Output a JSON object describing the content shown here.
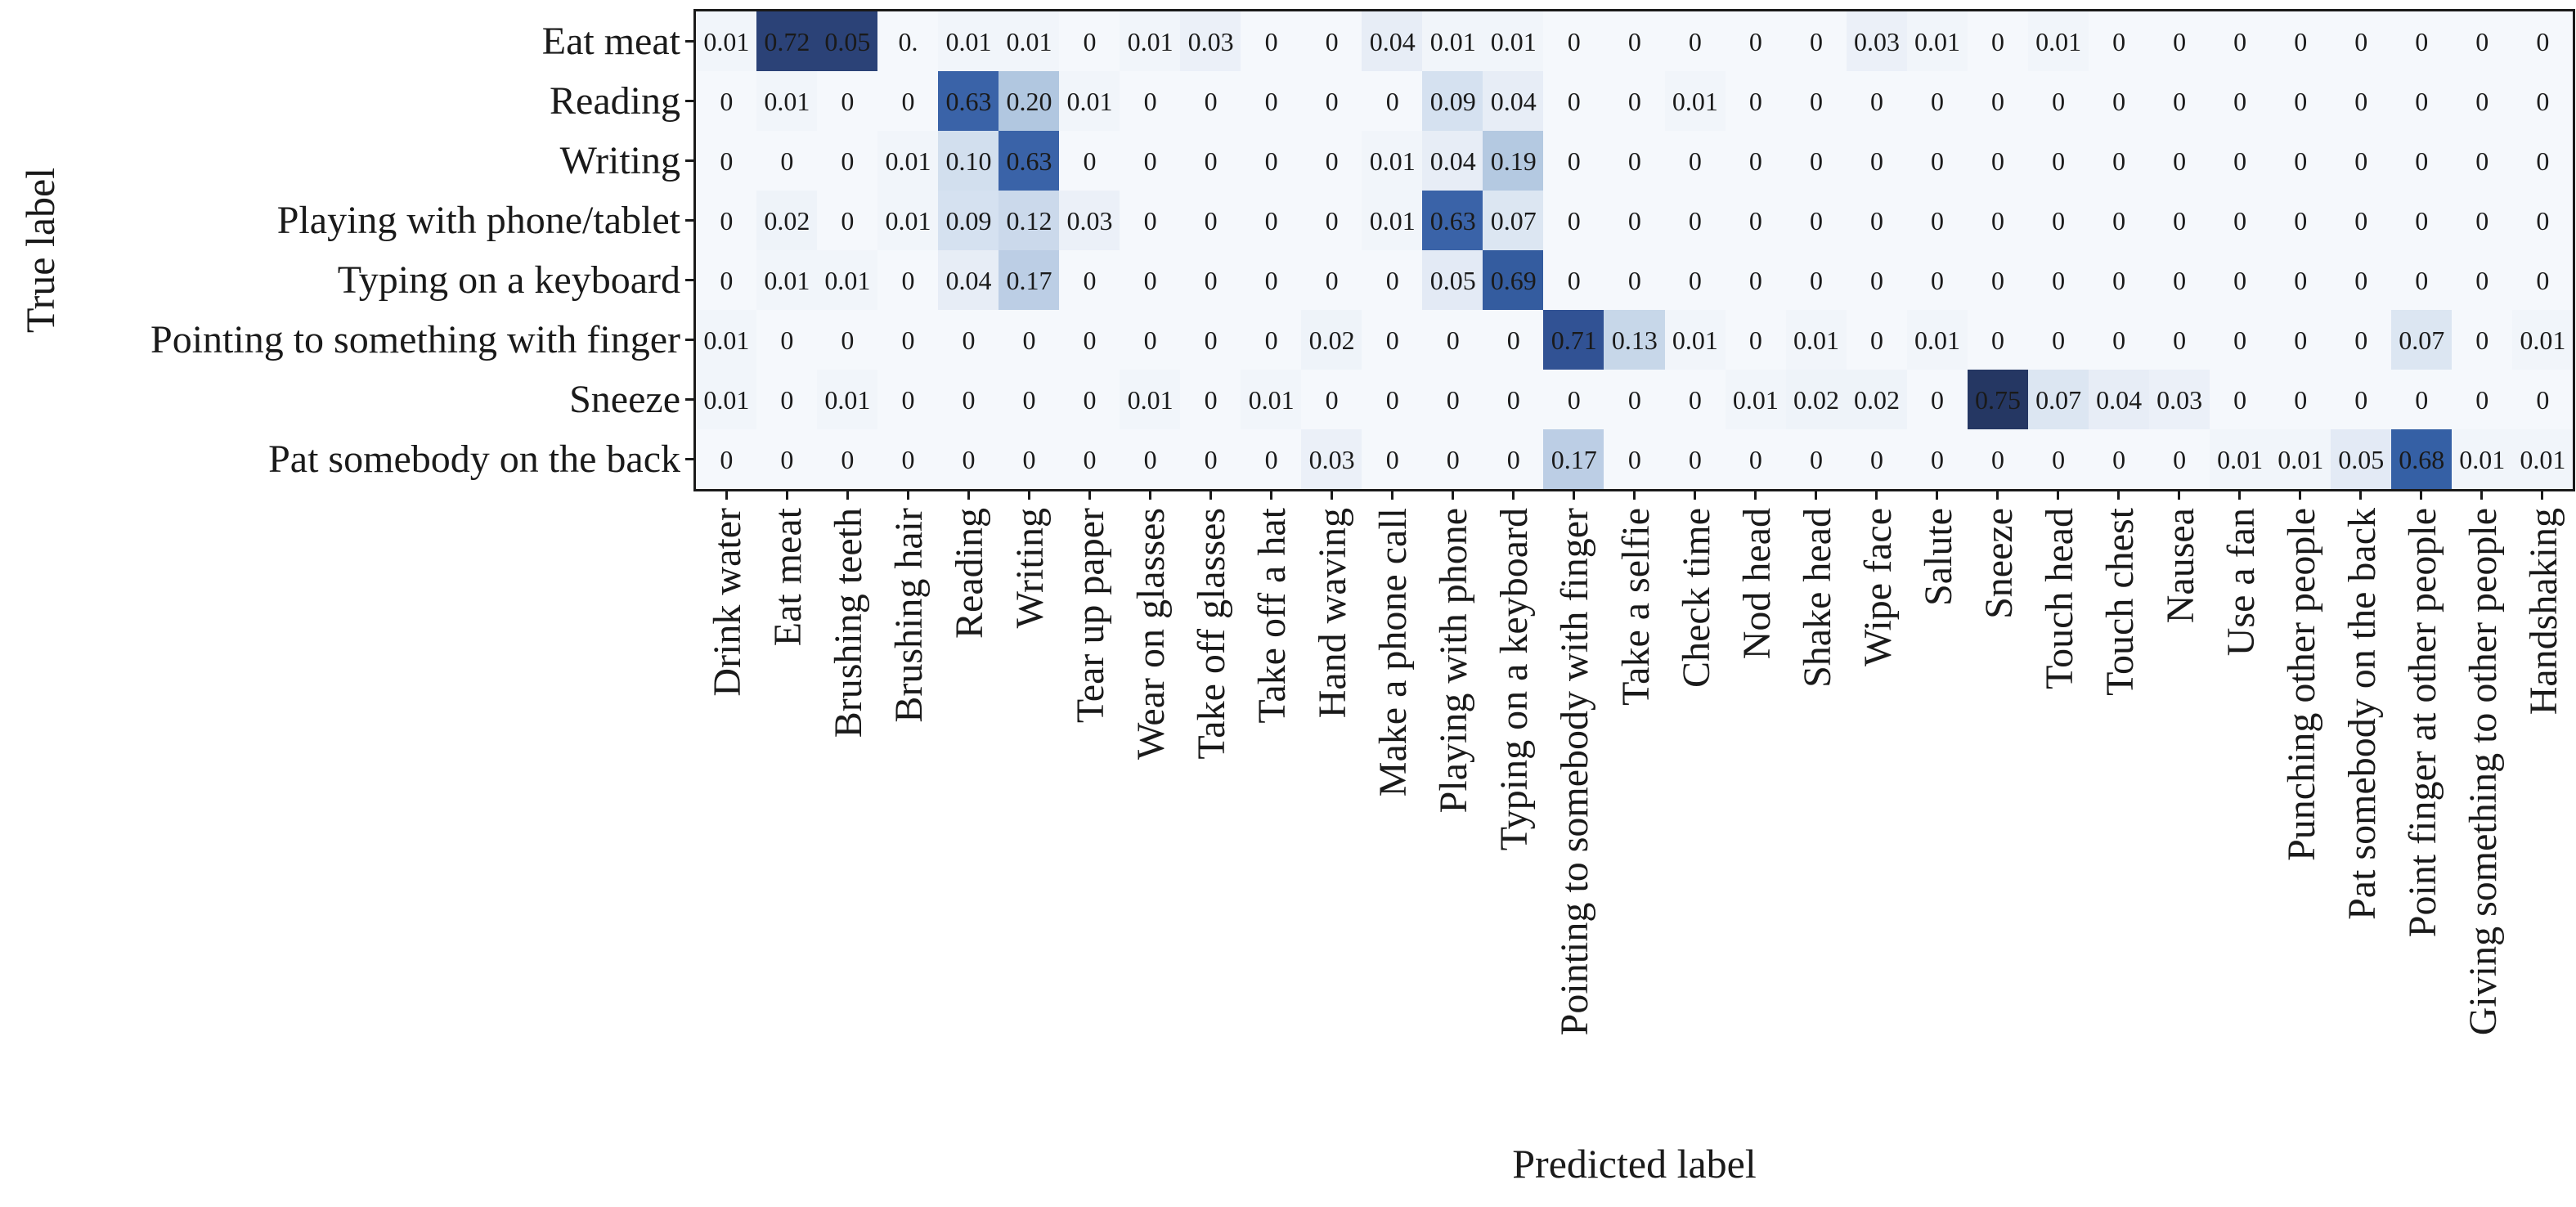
{
  "chart_data": {
    "type": "heatmap",
    "title": "",
    "xlabel": "Predicted label",
    "ylabel": "True label",
    "legend": "none",
    "grid": false,
    "rows": [
      "Eat meat",
      "Reading",
      "Writing",
      "Playing with phone/tablet",
      "Typing on a keyboard",
      "Pointing to something with finger",
      "Sneeze",
      "Pat somebody on the back"
    ],
    "columns": [
      "Drink water",
      "Eat meat",
      "Brushing teeth",
      "Brushing hair",
      "Reading",
      "Writing",
      "Tear up paper",
      "Wear on glasses",
      "Take off glasses",
      "Take off a hat",
      "Hand waving",
      "Make a phone call",
      "Playing with phone",
      "Typing on a keyboard",
      "Pointing to somebody with finger",
      "Take a selfie",
      "Check time",
      "Nod head",
      "Shake head",
      "Wipe face",
      "Salute",
      "Sneeze",
      "Touch head",
      "Touch chest",
      "Nausea",
      "Use a fan",
      "Punching other people",
      "Pat somebody on the back",
      "Point finger at other people",
      "Giving something to other people",
      "Handshaking"
    ],
    "values": [
      [
        "0.01",
        "0.72",
        "0.05",
        "0.",
        "0.01",
        "0.01",
        "0",
        "0.01",
        "0.03",
        "0",
        "0",
        "0.04",
        "0.01",
        "0.01",
        "0",
        "0",
        "0",
        "0",
        "0",
        "0.03",
        "0.01",
        "0",
        "0.01",
        "0",
        "0",
        "0",
        "0",
        "0",
        "0",
        "0",
        "0"
      ],
      [
        "0",
        "0.01",
        "0",
        "0",
        "0.63",
        "0.20",
        "0.01",
        "0",
        "0",
        "0",
        "0",
        "0",
        "0.09",
        "0.04",
        "0",
        "0",
        "0.01",
        "0",
        "0",
        "0",
        "0",
        "0",
        "0",
        "0",
        "0",
        "0",
        "0",
        "0",
        "0",
        "0",
        "0"
      ],
      [
        "0",
        "0",
        "0",
        "0.01",
        "0.10",
        "0.63",
        "0",
        "0",
        "0",
        "0",
        "0",
        "0.01",
        "0.04",
        "0.19",
        "0",
        "0",
        "0",
        "0",
        "0",
        "0",
        "0",
        "0",
        "0",
        "0",
        "0",
        "0",
        "0",
        "0",
        "0",
        "0",
        "0"
      ],
      [
        "0",
        "0.02",
        "0",
        "0.01",
        "0.09",
        "0.12",
        "0.03",
        "0",
        "0",
        "0",
        "0",
        "0.01",
        "0.63",
        "0.07",
        "0",
        "0",
        "0",
        "0",
        "0",
        "0",
        "0",
        "0",
        "0",
        "0",
        "0",
        "0",
        "0",
        "0",
        "0",
        "0",
        "0"
      ],
      [
        "0",
        "0.01",
        "0.01",
        "0",
        "0.04",
        "0.17",
        "0",
        "0",
        "0",
        "0",
        "0",
        "0",
        "0.05",
        "0.69",
        "0",
        "0",
        "0",
        "0",
        "0",
        "0",
        "0",
        "0",
        "0",
        "0",
        "0",
        "0",
        "0",
        "0",
        "0",
        "0",
        "0"
      ],
      [
        "0.01",
        "0",
        "0",
        "0",
        "0",
        "0",
        "0",
        "0",
        "0",
        "0",
        "0.02",
        "0",
        "0",
        "0",
        "0.71",
        "0.13",
        "0.01",
        "0",
        "0.01",
        "0",
        "0.01",
        "0",
        "0",
        "0",
        "0",
        "0",
        "0",
        "0",
        "0.07",
        "0",
        "0.01"
      ],
      [
        "0.01",
        "0",
        "0.01",
        "0",
        "0",
        "0",
        "0",
        "0.01",
        "0",
        "0.01",
        "0",
        "0",
        "0",
        "0",
        "0",
        "0",
        "0",
        "0.01",
        "0.02",
        "0.02",
        "0",
        "0.75",
        "0.07",
        "0.04",
        "0.03",
        "0",
        "0",
        "0",
        "0",
        "0",
        "0"
      ],
      [
        "0",
        "0",
        "0",
        "0",
        "0",
        "0",
        "0",
        "0",
        "0",
        "0",
        "0.03",
        "0",
        "0",
        "0",
        "0.17",
        "0",
        "0",
        "0",
        "0",
        "0",
        "0",
        "0",
        "0",
        "0",
        "0",
        "0.01",
        "0.01",
        "0.05",
        "0.68",
        "0.01",
        "0.01"
      ]
    ],
    "colormap": "Blues",
    "colormap_stops": [
      [
        0.0,
        "#f5f8fc"
      ],
      [
        0.01,
        "#f1f5fa"
      ],
      [
        0.02,
        "#eef3f9"
      ],
      [
        0.03,
        "#ebf0f8"
      ],
      [
        0.04,
        "#e7edf6"
      ],
      [
        0.05,
        "#e3eaf5"
      ],
      [
        0.07,
        "#dce6f2"
      ],
      [
        0.09,
        "#d5e1f0"
      ],
      [
        0.1,
        "#d2dfee"
      ],
      [
        0.12,
        "#cbd9eb"
      ],
      [
        0.13,
        "#c7d7e9"
      ],
      [
        0.17,
        "#bccee5"
      ],
      [
        0.19,
        "#b4c9e1"
      ],
      [
        0.2,
        "#b1c7e0"
      ],
      [
        0.63,
        "#3a63a8"
      ],
      [
        0.68,
        "#3560a5"
      ],
      [
        0.69,
        "#345c9f"
      ],
      [
        0.71,
        "#315294"
      ],
      [
        0.72,
        "#2b4277"
      ],
      [
        0.75,
        "#253763"
      ],
      [
        1.0,
        "#152345"
      ]
    ],
    "color_overrides": [
      {
        "row": 0,
        "col": 2,
        "as_value": 0.72
      }
    ],
    "text_color": "#1a1a1a",
    "border_color": "#1a1a1a",
    "background": "#ffffff"
  }
}
